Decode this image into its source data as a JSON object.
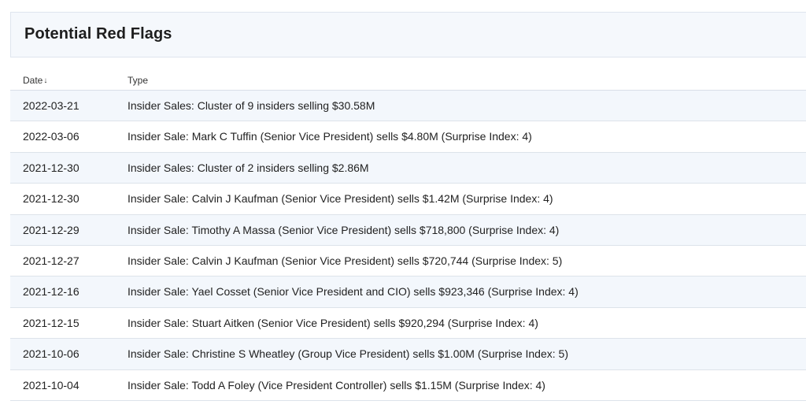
{
  "panel": {
    "title": "Potential Red Flags"
  },
  "table": {
    "columns": {
      "date": "Date",
      "type": "Type"
    },
    "sort": {
      "column": "Date",
      "direction": "descending",
      "icon": "sort-desc-arrow-icon"
    },
    "rows": [
      {
        "date": "2022-03-21",
        "type": "Insider Sales: Cluster of 9 insiders selling $30.58M"
      },
      {
        "date": "2022-03-06",
        "type": "Insider Sale: Mark C Tuffin (Senior Vice President) sells $4.80M (Surprise Index: 4)"
      },
      {
        "date": "2021-12-30",
        "type": "Insider Sales: Cluster of 2 insiders selling $2.86M"
      },
      {
        "date": "2021-12-30",
        "type": "Insider Sale: Calvin J Kaufman (Senior Vice President) sells $1.42M (Surprise Index: 4)"
      },
      {
        "date": "2021-12-29",
        "type": "Insider Sale: Timothy A Massa (Senior Vice President) sells $718,800 (Surprise Index: 4)"
      },
      {
        "date": "2021-12-27",
        "type": "Insider Sale: Calvin J Kaufman (Senior Vice President) sells $720,744 (Surprise Index: 5)"
      },
      {
        "date": "2021-12-16",
        "type": "Insider Sale: Yael Cosset (Senior Vice President and CIO) sells $923,346 (Surprise Index: 4)"
      },
      {
        "date": "2021-12-15",
        "type": "Insider Sale: Stuart Aitken (Senior Vice President) sells $920,294 (Surprise Index: 4)"
      },
      {
        "date": "2021-10-06",
        "type": "Insider Sale: Christine S Wheatley (Group Vice President) sells $1.00M (Surprise Index: 5)"
      },
      {
        "date": "2021-10-04",
        "type": "Insider Sale: Todd A Foley (Vice President Controller) sells $1.15M (Surprise Index: 4)"
      }
    ]
  },
  "colors": {
    "header_bg": "#f5f8fc",
    "stripe_bg": "#f3f7fc",
    "border": "#dde3ea"
  }
}
